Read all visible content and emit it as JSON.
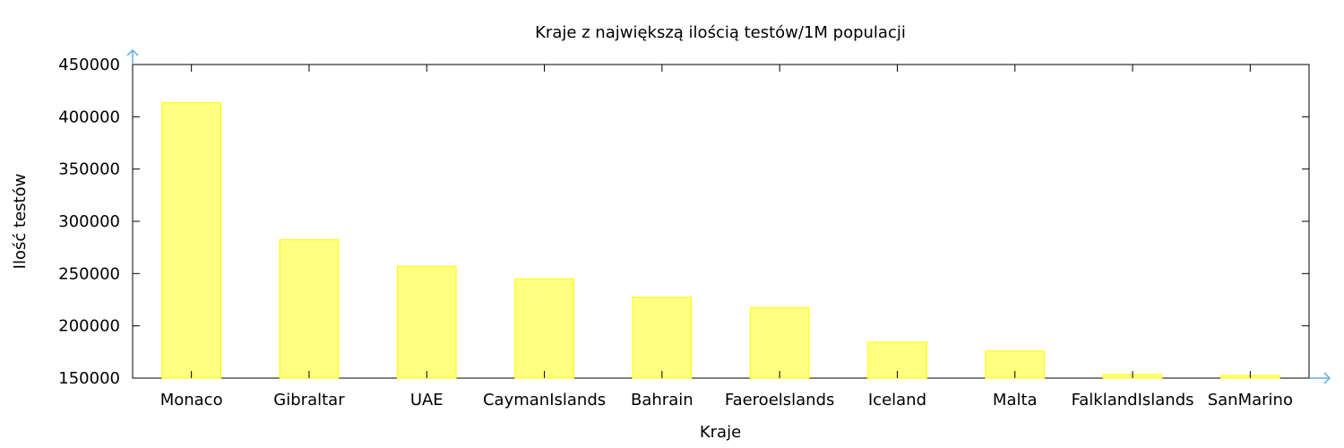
{
  "chart_data": {
    "type": "bar",
    "title": "Kraje z największą ilością testów/1M populacji",
    "xlabel": "Kraje",
    "ylabel": "Ilość testów",
    "categories": [
      "Monaco",
      "Gibraltar",
      "UAE",
      "CaymanIslands",
      "Bahrain",
      "Faeroelslands",
      "Iceland",
      "Malta",
      "FalklandIslands",
      "SanMarino"
    ],
    "values": [
      413500,
      282500,
      257000,
      245000,
      227500,
      217500,
      184500,
      176000,
      153500,
      152500
    ],
    "ylim": [
      150000,
      450000
    ],
    "yticks": [
      150000,
      200000,
      250000,
      300000,
      350000,
      400000,
      450000
    ],
    "yticks_labels": [
      "150000",
      "200000",
      "250000",
      "300000",
      "350000",
      "400000",
      "450000"
    ],
    "grid": false,
    "colors": {
      "bar_fill": "#ffff80",
      "bar_stroke": "#ffff00",
      "axis_arrow": "#5dade2",
      "axis": "#000000"
    }
  }
}
